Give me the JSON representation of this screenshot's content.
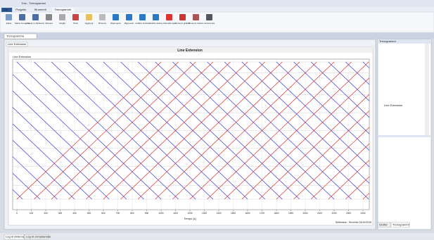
{
  "app": {
    "title": "Tmc - Trenogrammi",
    "tabs": [
      "File",
      "Progetto",
      "Strumenti",
      "Trenogrammi"
    ],
    "buttons": [
      "Salva",
      "Salva immagine",
      "Copia in clipboard",
      "Stampa",
      "Griglia",
      "Titolo",
      "Aggiungi",
      "Rimuovi",
      "Riga sopra",
      "Riga sotto",
      "Grafico sinistra",
      "Grafico destra",
      "Cancella riga",
      "Rimuovi grafico",
      "Rimuovi marcia",
      "Incrementa"
    ],
    "document_tab": "Trenogramma",
    "chart_tab": "Line Extension",
    "panel_title": "Trenogrammi",
    "tree_item": "Line Extension",
    "status": "Settimana - Secondo 24/10/2016",
    "panel_tabs": [
      "Grafici",
      "Trenogrammi"
    ],
    "bottom_tabs": [
      "Log di sistema",
      "Log di compilazione"
    ]
  },
  "chart_data": {
    "type": "timespace",
    "title": "Line Extension",
    "subtitle": "Line Extension",
    "xlabel": "Tempo [s]",
    "xlim": [
      0,
      2400
    ],
    "xticks": [
      0,
      100,
      200,
      300,
      400,
      500,
      600,
      700,
      800,
      900,
      1000,
      1100,
      1200,
      1300,
      1400,
      1500,
      1600,
      1700,
      1800,
      1900,
      2000,
      2100,
      2200,
      2300,
      2400
    ],
    "ylim": [
      0,
      100
    ],
    "yticks": [
      0,
      8,
      24,
      37,
      50,
      63,
      76,
      90,
      100
    ],
    "grid": true,
    "travel_time": 1000,
    "series": [
      {
        "color": "#3a3ad8",
        "from": 0,
        "to": 100,
        "departures": [
          -960,
          -840,
          -720,
          -600,
          -480,
          -360,
          -240,
          -120,
          0,
          120,
          240,
          360,
          480,
          600,
          720,
          840,
          960,
          1080,
          1200,
          1320,
          1440,
          1560,
          1680,
          1800,
          1920,
          2040,
          2160,
          2280,
          2400
        ]
      },
      {
        "color": "#e03030",
        "from": 100,
        "to": 0,
        "departures": [
          0,
          120,
          240,
          360,
          480,
          600,
          720,
          840,
          960,
          1080,
          1200,
          1320,
          1440,
          1560,
          1680,
          1800,
          1920,
          2040,
          2160,
          2280,
          2400
        ]
      }
    ]
  }
}
